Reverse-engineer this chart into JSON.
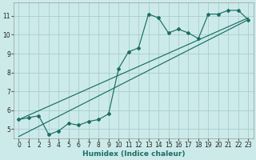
{
  "xlabel": "Humidex (Indice chaleur)",
  "ylabel": "",
  "background_color": "#cceaea",
  "grid_color": "#aacece",
  "line_color": "#1a6e64",
  "xlim": [
    -0.5,
    23.5
  ],
  "ylim": [
    4.5,
    11.7
  ],
  "xticks": [
    0,
    1,
    2,
    3,
    4,
    5,
    6,
    7,
    8,
    9,
    10,
    11,
    12,
    13,
    14,
    15,
    16,
    17,
    18,
    19,
    20,
    21,
    22,
    23
  ],
  "yticks": [
    5,
    6,
    7,
    8,
    9,
    10,
    11
  ],
  "scatter_x": [
    0,
    1,
    2,
    3,
    4,
    5,
    6,
    7,
    8,
    9,
    10,
    11,
    12,
    13,
    14,
    15,
    16,
    17,
    18,
    19,
    20,
    21,
    22,
    23
  ],
  "scatter_y": [
    5.5,
    5.6,
    5.7,
    4.7,
    4.9,
    5.3,
    5.2,
    5.4,
    5.5,
    5.8,
    8.2,
    9.1,
    9.3,
    11.1,
    10.9,
    10.1,
    10.3,
    10.1,
    9.8,
    11.1,
    11.1,
    11.3,
    11.3,
    10.8
  ],
  "line1_x": [
    0,
    23
  ],
  "line1_y": [
    5.5,
    10.9
  ],
  "line2_x": [
    0,
    23
  ],
  "line2_y": [
    4.6,
    10.8
  ],
  "tick_fontsize": 5.5,
  "xlabel_fontsize": 6.5,
  "xlabel_fontweight": "bold"
}
